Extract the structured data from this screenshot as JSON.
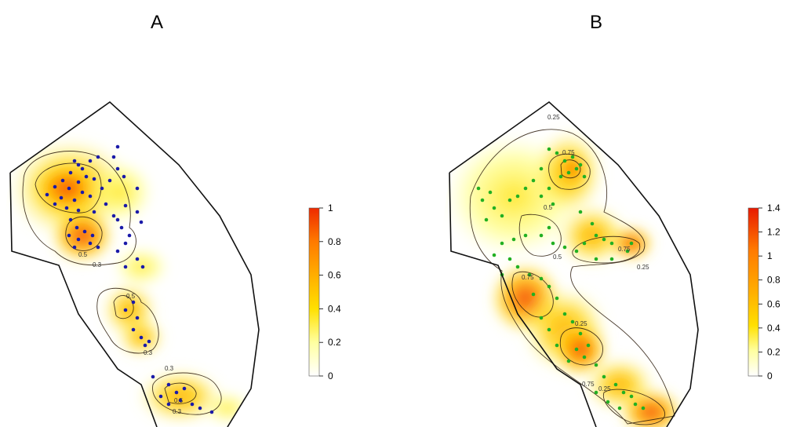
{
  "panels": [
    {
      "title": "A",
      "point_color": "#1a1aa8",
      "legend_ticks": [
        "0",
        "0.2",
        "0.4",
        "0.6",
        "0.8",
        "1"
      ],
      "legend_range": [
        0,
        1
      ],
      "contour_labels": [
        "0.5",
        "0.3",
        "0.5",
        "0.3",
        "0.3",
        "0.5",
        "0.3"
      ]
    },
    {
      "title": "B",
      "point_color": "#22b022",
      "legend_ticks": [
        "0",
        "0.2",
        "0.4",
        "0.6",
        "0.8",
        "1",
        "1.2",
        "1.4"
      ],
      "legend_range": [
        0,
        1.4
      ],
      "contour_labels": [
        "0.25",
        "0.75",
        "0.5",
        "0.25",
        "0.75",
        "0.5",
        "0.25",
        "0.75",
        "0.25",
        "0.75"
      ]
    }
  ],
  "color_scale": [
    "#ffffff",
    "#ffffa0",
    "#ffe000",
    "#ffae00",
    "#ff7a00",
    "#ee2a00"
  ]
}
